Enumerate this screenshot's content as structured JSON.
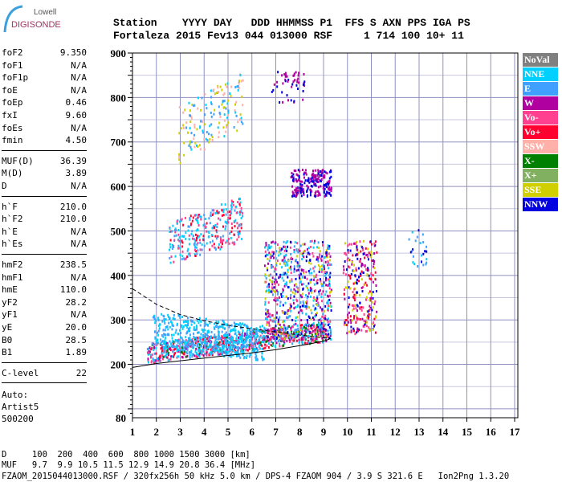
{
  "logo": {
    "line1": "Lowell",
    "line2": "DIGISONDE"
  },
  "header": {
    "labels": "Station    YYYY DAY   DDD HHMMSS P1  FFS S AXN PPS IGA PS",
    "values": "Fortaleza 2015 Fev13 044 013000 RSF     1 714 100 10+ 11"
  },
  "params": [
    {
      "k": "foF2",
      "v": "9.350"
    },
    {
      "k": "foF1",
      "v": "N/A"
    },
    {
      "k": "foF1p",
      "v": "N/A"
    },
    {
      "k": "foE",
      "v": "N/A"
    },
    {
      "k": "foEp",
      "v": "0.46"
    },
    {
      "k": "fxI",
      "v": "9.60"
    },
    {
      "k": "foEs",
      "v": "N/A"
    },
    {
      "k": "fmin",
      "v": "4.50"
    },
    {
      "k": "MUF(D)",
      "v": "36.39"
    },
    {
      "k": "M(D)",
      "v": "3.89"
    },
    {
      "k": "D",
      "v": "N/A"
    },
    {
      "k": "h`F",
      "v": "210.0"
    },
    {
      "k": "h`F2",
      "v": "210.0"
    },
    {
      "k": "h`E",
      "v": "N/A"
    },
    {
      "k": "h`Es",
      "v": "N/A"
    },
    {
      "k": "hmF2",
      "v": "238.5"
    },
    {
      "k": "hmF1",
      "v": "N/A"
    },
    {
      "k": "hmE",
      "v": "110.0"
    },
    {
      "k": "yF2",
      "v": "28.2"
    },
    {
      "k": "yF1",
      "v": "N/A"
    },
    {
      "k": "yE",
      "v": "20.0"
    },
    {
      "k": "B0",
      "v": "28.5"
    },
    {
      "k": "B1",
      "v": "1.89"
    },
    {
      "k": "C-level",
      "v": "22"
    }
  ],
  "auto": {
    "l1": "Auto:",
    "l2": "Artist5",
    "l3": "500200"
  },
  "footer": {
    "d": "D     100  200  400  600  800 1000 1500 3000 [km]",
    "muf": "MUF   9.7  9.9 10.5 11.5 12.9 14.9 20.8 36.4 [MHz]",
    "file": "FZAOM_2015044013000.RSF / 320fx256h 50 kHz 5.0 km / DPS-4 FZAOM 904 / 3.9 S 321.6 E   Ion2Png 1.3.20"
  },
  "legend": [
    {
      "label": "NoVal",
      "color": "#808080"
    },
    {
      "label": "NNE",
      "color": "#00d0ff"
    },
    {
      "label": "E",
      "color": "#40a0ff"
    },
    {
      "label": "W",
      "color": "#b000a0"
    },
    {
      "label": "Vo-",
      "color": "#ff4090"
    },
    {
      "label": "Vo+",
      "color": "#ff0030"
    },
    {
      "label": "SSW",
      "color": "#ffb0a8"
    },
    {
      "label": "X-",
      "color": "#008000"
    },
    {
      "label": "X+",
      "color": "#80b060"
    },
    {
      "label": "SSE",
      "color": "#d0d000"
    },
    {
      "label": "NNW",
      "color": "#0000e0"
    }
  ],
  "chart_data": {
    "type": "scatter",
    "xlabel": "Frequency [MHz]",
    "ylabel": "Virtual height [km]",
    "xlim": [
      1,
      17
    ],
    "ylim": [
      80,
      900
    ],
    "xticks": [
      "1",
      "2",
      "3",
      "4",
      "5",
      "6",
      "7",
      "8",
      "9",
      "10",
      "11",
      "12",
      "13",
      "14",
      "15",
      "16",
      "17"
    ],
    "yticks": [
      {
        "v": 900,
        "t": "900"
      },
      {
        "v": 800,
        "t": "800"
      },
      {
        "v": 700,
        "t": "700"
      },
      {
        "v": 600,
        "t": "600"
      },
      {
        "v": 500,
        "t": "500"
      },
      {
        "v": 400,
        "t": "400"
      },
      {
        "v": 300,
        "t": "300"
      },
      {
        "v": 200,
        "t": "200"
      },
      {
        "v": 80,
        "t": "80"
      }
    ],
    "clusters": [
      {
        "f": [
          1.6,
          9.3
        ],
        "h": [
          205,
          250
        ],
        "colors": [
          5,
          4,
          2,
          7,
          3,
          1
        ],
        "n": 900,
        "slope": 50
      },
      {
        "f": [
          1.8,
          6.5
        ],
        "h": [
          240,
          320
        ],
        "colors": [
          2,
          1
        ],
        "n": 500,
        "slope": -30
      },
      {
        "f": [
          2.5,
          5.6
        ],
        "h": [
          420,
          520
        ],
        "colors": [
          2,
          1,
          5,
          4
        ],
        "n": 300,
        "slope": 60
      },
      {
        "f": [
          2.9,
          5.6
        ],
        "h": [
          650,
          780
        ],
        "colors": [
          9,
          6,
          2,
          1
        ],
        "n": 160,
        "slope": 80
      },
      {
        "f": [
          6.5,
          9.3
        ],
        "h": [
          260,
          480
        ],
        "colors": [
          10,
          2,
          1,
          3,
          9,
          4
        ],
        "n": 700,
        "slope": 0
      },
      {
        "f": [
          7.6,
          9.3
        ],
        "h": [
          580,
          640
        ],
        "colors": [
          10,
          3
        ],
        "n": 220,
        "slope": 0
      },
      {
        "f": [
          9.8,
          11.2
        ],
        "h": [
          270,
          480
        ],
        "colors": [
          5,
          4,
          9,
          10,
          3
        ],
        "n": 280,
        "slope": 0
      },
      {
        "f": [
          6.8,
          8.2
        ],
        "h": [
          790,
          860
        ],
        "colors": [
          10,
          3
        ],
        "n": 50,
        "slope": 0
      },
      {
        "f": [
          12.5,
          13.3
        ],
        "h": [
          420,
          520
        ],
        "colors": [
          2,
          1,
          10
        ],
        "n": 25,
        "slope": 0
      }
    ],
    "curves": [
      {
        "name": "dashed",
        "points": [
          [
            1,
            370
          ],
          [
            2,
            335
          ],
          [
            3,
            312
          ],
          [
            4,
            298
          ],
          [
            5,
            288
          ],
          [
            6,
            280
          ],
          [
            7,
            273
          ],
          [
            8,
            266
          ],
          [
            9.3,
            258
          ]
        ]
      },
      {
        "name": "solid",
        "points": [
          [
            1,
            193
          ],
          [
            2,
            202
          ],
          [
            3,
            208
          ],
          [
            4,
            214
          ],
          [
            5,
            220
          ],
          [
            6,
            226
          ],
          [
            7,
            233
          ],
          [
            8,
            242
          ],
          [
            9,
            252
          ],
          [
            9.3,
            258
          ]
        ]
      }
    ]
  }
}
